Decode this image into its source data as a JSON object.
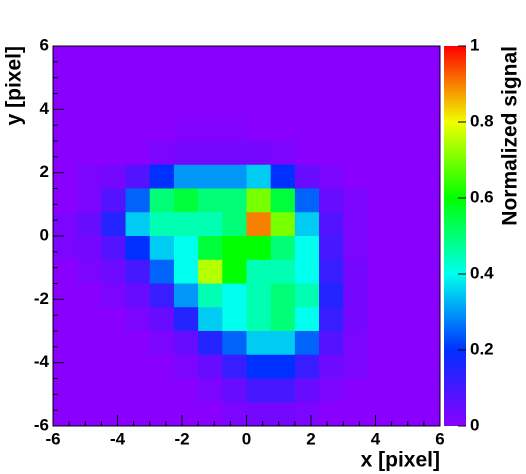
{
  "chart_data": {
    "type": "heatmap",
    "x_label": "x [pixel]",
    "y_label": "y [pixel]",
    "z_label": "Normalized signal",
    "x": [
      -5.625,
      -4.875,
      -4.125,
      -3.375,
      -2.625,
      -1.875,
      -1.125,
      -0.375,
      0.375,
      1.125,
      1.875,
      2.625,
      3.375,
      4.125,
      4.875,
      5.625
    ],
    "y": [
      5.625,
      4.875,
      4.125,
      3.375,
      2.625,
      1.875,
      1.125,
      0.375,
      -0.375,
      -1.125,
      -1.875,
      -2.625,
      -3.375,
      -4.125,
      -4.875,
      -5.625
    ],
    "z": [
      [
        0,
        0,
        0,
        0,
        0,
        0,
        0,
        0,
        0,
        0,
        0,
        0,
        0,
        0,
        0,
        0
      ],
      [
        0,
        0,
        0,
        0,
        0,
        0,
        0,
        0,
        0,
        0,
        0,
        0,
        0,
        0,
        0,
        0
      ],
      [
        0,
        0,
        0,
        0,
        0,
        0,
        0,
        0,
        0,
        0,
        0,
        0,
        0,
        0,
        0,
        0
      ],
      [
        0,
        0,
        0,
        0,
        0,
        0.01,
        0.01,
        0.01,
        0,
        0,
        0,
        0,
        0,
        0,
        0,
        0
      ],
      [
        0,
        0,
        0,
        0,
        0.02,
        0.03,
        0.03,
        0.03,
        0.03,
        0.02,
        0,
        0,
        0,
        0,
        0,
        0
      ],
      [
        0,
        0.02,
        0.03,
        0.08,
        0.2,
        0.3,
        0.3,
        0.3,
        0.35,
        0.2,
        0.05,
        0.02,
        0,
        0,
        0,
        0
      ],
      [
        0,
        0.02,
        0.08,
        0.25,
        0.5,
        0.55,
        0.5,
        0.5,
        0.7,
        0.55,
        0.25,
        0.05,
        0.02,
        0,
        0,
        0
      ],
      [
        0.02,
        0.05,
        0.15,
        0.35,
        0.45,
        0.45,
        0.45,
        0.5,
        0.9,
        0.7,
        0.35,
        0.08,
        0.02,
        0,
        0,
        0
      ],
      [
        0.02,
        0.03,
        0.08,
        0.2,
        0.35,
        0.4,
        0.55,
        0.6,
        0.6,
        0.5,
        0.4,
        0.1,
        0.02,
        0,
        0,
        0
      ],
      [
        0,
        0.02,
        0.04,
        0.1,
        0.25,
        0.4,
        0.75,
        0.6,
        0.45,
        0.45,
        0.4,
        0.12,
        0.03,
        0,
        0,
        0
      ],
      [
        0,
        0,
        0.02,
        0.05,
        0.12,
        0.3,
        0.45,
        0.4,
        0.45,
        0.5,
        0.45,
        0.15,
        0.03,
        0,
        0,
        0
      ],
      [
        0,
        0,
        0,
        0.02,
        0.05,
        0.15,
        0.35,
        0.4,
        0.45,
        0.5,
        0.4,
        0.12,
        0.03,
        0,
        0,
        0
      ],
      [
        0,
        0,
        0,
        0,
        0.02,
        0.05,
        0.15,
        0.25,
        0.35,
        0.35,
        0.25,
        0.08,
        0.02,
        0,
        0,
        0
      ],
      [
        0,
        0,
        0,
        0,
        0,
        0.02,
        0.05,
        0.12,
        0.2,
        0.2,
        0.12,
        0.04,
        0.02,
        0,
        0,
        0
      ],
      [
        0,
        0,
        0,
        0,
        0,
        0,
        0.02,
        0.05,
        0.1,
        0.1,
        0.05,
        0.02,
        0,
        0,
        0,
        0
      ],
      [
        0,
        0,
        0,
        0,
        0,
        0,
        0,
        0.02,
        0.03,
        0.03,
        0.02,
        0,
        0,
        0,
        0,
        0
      ]
    ],
    "xlim": [
      -6,
      6
    ],
    "ylim": [
      -6,
      6
    ],
    "zlim": [
      0,
      1
    ],
    "xticks": [
      -6,
      -4,
      -2,
      0,
      2,
      4,
      6
    ],
    "yticks": [
      -6,
      -4,
      -2,
      0,
      2,
      4,
      6
    ],
    "zticks": [
      0,
      0.2,
      0.4,
      0.6,
      0.8,
      1
    ],
    "colorscale": [
      [
        0,
        "#8a00ff"
      ],
      [
        0.2,
        "#0030ff"
      ],
      [
        0.4,
        "#00ffee"
      ],
      [
        0.6,
        "#00ff00"
      ],
      [
        0.8,
        "#f0ff00"
      ],
      [
        1,
        "#ff0000"
      ]
    ]
  }
}
